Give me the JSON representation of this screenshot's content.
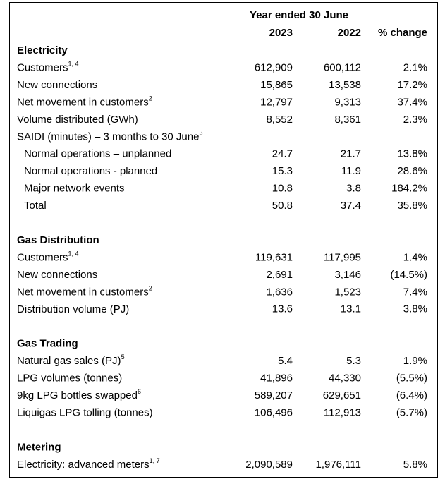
{
  "header": {
    "period": "Year ended 30 June",
    "columns": [
      "2023",
      "2022",
      "% change"
    ]
  },
  "sections": [
    {
      "title": "Electricity",
      "rows": [
        {
          "label": "Customers",
          "sup": "1, 4",
          "values": [
            "612,909",
            "600,112",
            "2.1%"
          ]
        },
        {
          "label": "New connections",
          "values": [
            "15,865",
            "13,538",
            "17.2%"
          ]
        },
        {
          "label": "Net movement in customers",
          "sup": "2",
          "values": [
            "12,797",
            "9,313",
            "37.4%"
          ]
        },
        {
          "label": "Volume distributed (GWh)",
          "values": [
            "8,552",
            "8,361",
            "2.3%"
          ]
        },
        {
          "label": "SAIDI (minutes) – 3 months to 30 June",
          "sup": "3",
          "subrows": [
            {
              "label": "Normal operations – unplanned",
              "values": [
                "24.7",
                "21.7",
                "13.8%"
              ]
            },
            {
              "label": "Normal operations - planned",
              "values": [
                "15.3",
                "11.9",
                "28.6%"
              ]
            },
            {
              "label": "Major network events",
              "values": [
                "10.8",
                "3.8",
                "184.2%"
              ]
            },
            {
              "label": "Total",
              "values": [
                "50.8",
                "37.4",
                "35.8%"
              ]
            }
          ]
        }
      ]
    },
    {
      "title": "Gas Distribution",
      "rows": [
        {
          "label": "Customers",
          "sup": "1, 4",
          "values": [
            "119,631",
            "117,995",
            "1.4%"
          ]
        },
        {
          "label": "New connections",
          "values": [
            "2,691",
            "3,146",
            "(14.5%)"
          ]
        },
        {
          "label": "Net movement in customers",
          "sup": "2",
          "values": [
            "1,636",
            "1,523",
            "7.4%"
          ]
        },
        {
          "label": "Distribution volume (PJ)",
          "values": [
            "13.6",
            "13.1",
            "3.8%"
          ]
        }
      ]
    },
    {
      "title": "Gas Trading",
      "rows": [
        {
          "label": "Natural gas sales (PJ)",
          "sup": "5",
          "values": [
            "5.4",
            "5.3",
            "1.9%"
          ]
        },
        {
          "label": "LPG volumes (tonnes)",
          "values": [
            "41,896",
            "44,330",
            "(5.5%)"
          ]
        },
        {
          "label": "9kg LPG bottles swapped",
          "sup": "6",
          "values": [
            "589,207",
            "629,651",
            "(6.4%)"
          ]
        },
        {
          "label": "Liquigas LPG tolling (tonnes)",
          "values": [
            "106,496",
            "112,913",
            "(5.7%)"
          ]
        }
      ]
    },
    {
      "title": "Metering",
      "rows": [
        {
          "label": "Electricity: advanced meters",
          "sup": "1, 7",
          "values": [
            "2,090,589",
            "1,976,111",
            "5.8%"
          ]
        }
      ]
    }
  ]
}
